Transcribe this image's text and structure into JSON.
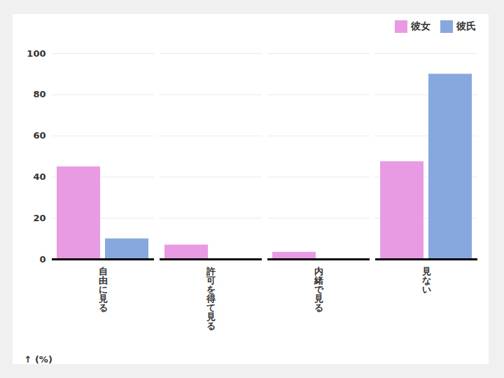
{
  "chart_data": {
    "type": "bar",
    "categories": [
      "自由に見る",
      "許可を得て見る",
      "内緒で見る",
      "見ない"
    ],
    "series": [
      {
        "name": "彼女",
        "color": "#e89ae3",
        "values": [
          45,
          7,
          3.5,
          47.5
        ]
      },
      {
        "name": "彼氏",
        "color": "#86a8de",
        "values": [
          10,
          0,
          0,
          90
        ]
      }
    ],
    "y_label": "(%)",
    "ylim": [
      0,
      100
    ],
    "yticks": [
      0,
      20,
      40,
      60,
      80,
      100
    ],
    "grid": true,
    "legend": "top-right"
  }
}
